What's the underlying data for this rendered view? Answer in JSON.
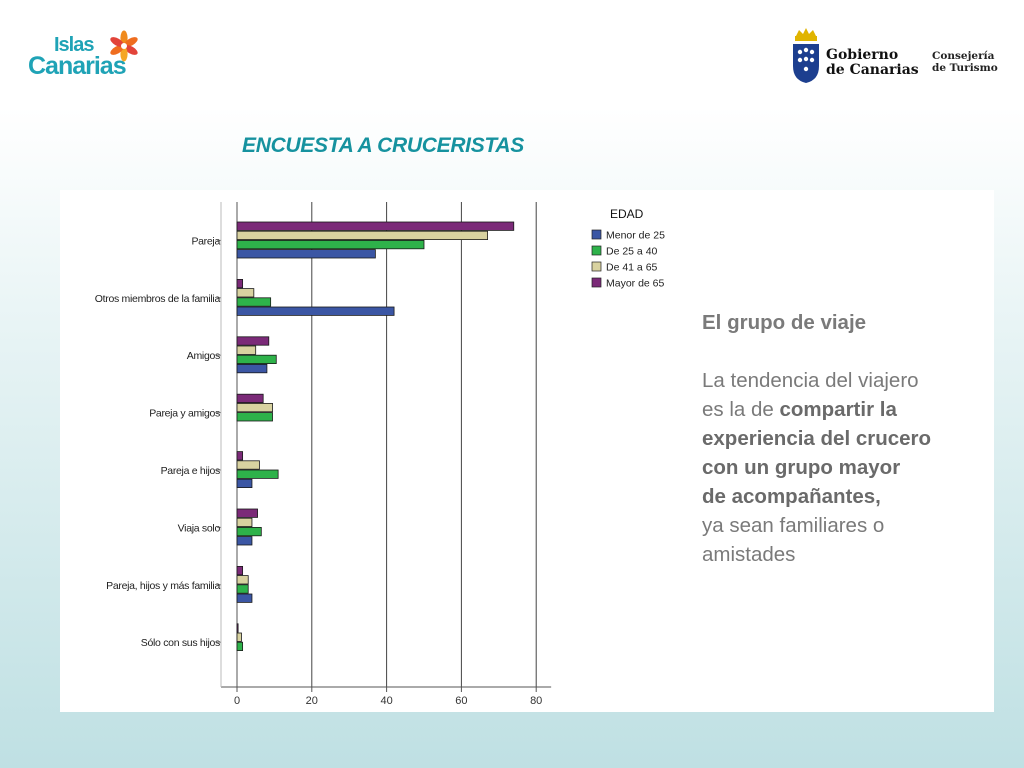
{
  "brand": {
    "islas_line1": "Islas",
    "islas_line2": "Canarias"
  },
  "government": {
    "name_line1": "Gobierno",
    "name_line2": "de Canarias",
    "dept_line1": "Consejería",
    "dept_line2": "de Turismo"
  },
  "title": "ENCUESTA A CRUCERISTAS",
  "text": {
    "heading": "El grupo de viaje",
    "lines": [
      {
        "text": "La tendencia del viajero",
        "bold": false
      },
      {
        "text": "es la de ",
        "bold": false,
        "tail": "compartir la",
        "tail_bold": true
      },
      {
        "text": "experiencia del crucero",
        "bold": true
      },
      {
        "text": "con un grupo mayor",
        "bold": true
      },
      {
        "text": "de acompañantes,",
        "bold": true
      },
      {
        "text": "ya sean familiares o",
        "bold": false
      },
      {
        "text": "amistades",
        "bold": false
      }
    ]
  },
  "colors": {
    "accent": "#16929f",
    "text_gray": "#7a7a7a"
  },
  "chart_data": {
    "type": "bar",
    "orientation": "horizontal",
    "categories": [
      "Pareja",
      "Otros miembros de la familia",
      "Amigos",
      "Pareja y amigos",
      "Pareja e hijos",
      "Viaja solo",
      "Pareja, hijos y más familia",
      "Sólo con sus hijos"
    ],
    "legend_title": "EDAD",
    "legend_position": "top-right",
    "series": [
      {
        "name": "Mayor de 65",
        "color": "#7b2a78",
        "values": [
          74,
          1.5,
          8.5,
          7,
          1.5,
          5.5,
          1.5,
          0.3
        ]
      },
      {
        "name": "De 41 a 65",
        "color": "#d8d2a0",
        "values": [
          67,
          4.5,
          5,
          9.5,
          6,
          4,
          3,
          1.2
        ]
      },
      {
        "name": "De 25 a 40",
        "color": "#2eb24a",
        "values": [
          50,
          9,
          10.5,
          9.5,
          11,
          6.5,
          3,
          1.5
        ]
      },
      {
        "name": "Menor de 25",
        "color": "#3b56a4",
        "values": [
          37,
          42,
          8,
          0,
          4,
          4,
          4,
          0
        ]
      }
    ],
    "legend_order": [
      "Menor de 25",
      "De 25 a 40",
      "De 41 a 65",
      "Mayor de 65"
    ],
    "x_ticks": [
      0,
      20,
      40,
      60,
      80
    ],
    "xlim": [
      0,
      84
    ],
    "grid": true
  }
}
